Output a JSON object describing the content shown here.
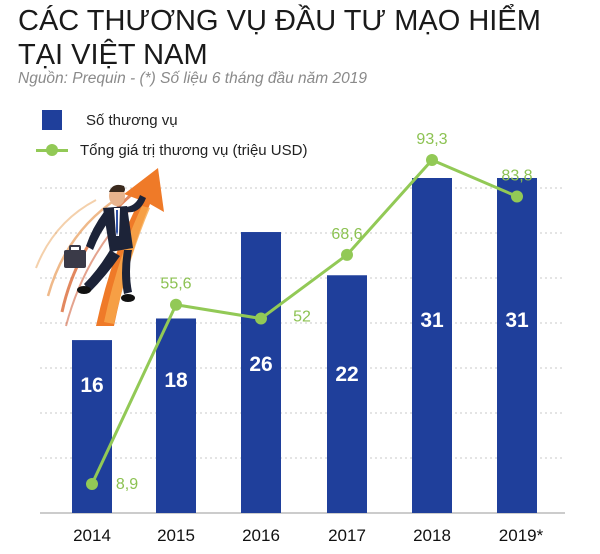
{
  "title": "CÁC THƯƠNG VỤ ĐẦU TƯ MẠO HIỂM TẠI VIỆT NAM",
  "subtitle": "Nguồn: Prequin - (*) Số liệu 6 tháng đầu năm 2019",
  "colors": {
    "bar": "#1f3f9b",
    "line": "#92c956",
    "line_label": "#8cc252",
    "grid": "#c9c9c9"
  },
  "chart_data": {
    "type": "bar",
    "title": "CÁC THƯƠNG VỤ ĐẦU TƯ MẠO HIỂM TẠI VIỆT NAM",
    "categories": [
      "2014",
      "2015",
      "2016",
      "2017",
      "2018",
      "2019*"
    ],
    "series": [
      {
        "name": "Số thương vụ",
        "type": "bar",
        "values": [
          16,
          18,
          26,
          22,
          31,
          31
        ],
        "labels": [
          "16",
          "18",
          "26",
          "22",
          "31",
          "31"
        ]
      },
      {
        "name": "Tổng giá trị thương vụ (triệu USD)",
        "type": "line",
        "values": [
          8.9,
          55.6,
          52,
          68.6,
          93.3,
          83.8
        ],
        "labels": [
          "8,9",
          "55,6",
          "52",
          "68,6",
          "93,3",
          "83,8"
        ]
      }
    ],
    "legend_position": "top-left",
    "grid": true
  }
}
